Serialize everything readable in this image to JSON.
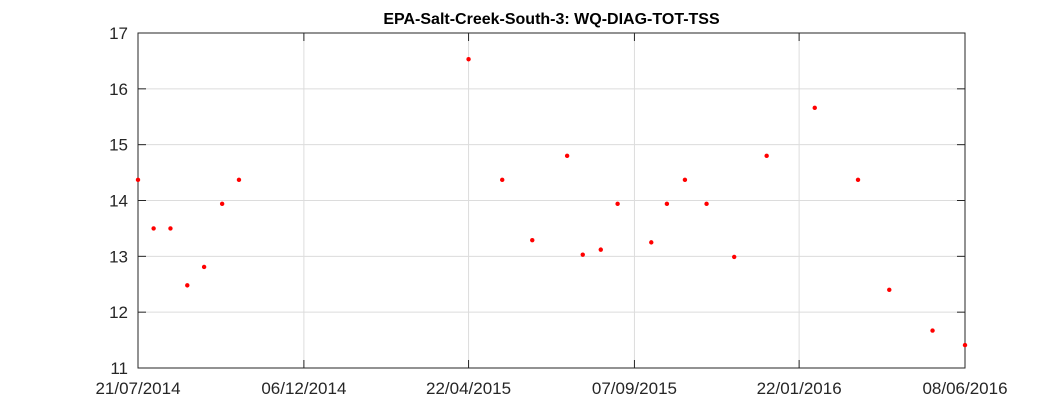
{
  "chart_data": {
    "type": "scatter",
    "title": "EPA-Salt-Creek-South-3: WQ-DIAG-TOT-TSS",
    "xlabel": "",
    "ylabel": "",
    "x_axis_type": "date",
    "xlim": [
      "2014-07-21",
      "2016-06-08"
    ],
    "ylim": [
      11,
      17
    ],
    "xticks": [
      "2014-07-21",
      "2014-12-06",
      "2015-04-22",
      "2015-09-07",
      "2016-01-22",
      "2016-06-08"
    ],
    "xtick_labels": [
      "21/07/2014",
      "06/12/2014",
      "22/04/2015",
      "07/09/2015",
      "22/01/2016",
      "08/06/2016"
    ],
    "yticks": [
      11,
      12,
      13,
      14,
      15,
      16,
      17
    ],
    "ytick_labels": [
      "11",
      "12",
      "13",
      "14",
      "15",
      "16",
      "17"
    ],
    "grid": true,
    "marker_color": "#ff0000",
    "points": [
      {
        "x": "2014-07-21",
        "y": 14.37
      },
      {
        "x": "2014-08-03",
        "y": 13.5
      },
      {
        "x": "2014-08-17",
        "y": 13.5
      },
      {
        "x": "2014-08-31",
        "y": 12.48
      },
      {
        "x": "2014-09-14",
        "y": 12.81
      },
      {
        "x": "2014-09-29",
        "y": 13.94
      },
      {
        "x": "2014-10-13",
        "y": 14.37
      },
      {
        "x": "2015-04-22",
        "y": 16.53
      },
      {
        "x": "2015-05-20",
        "y": 14.37
      },
      {
        "x": "2015-06-14",
        "y": 13.29
      },
      {
        "x": "2015-07-13",
        "y": 14.8
      },
      {
        "x": "2015-07-26",
        "y": 13.03
      },
      {
        "x": "2015-08-10",
        "y": 13.12
      },
      {
        "x": "2015-08-24",
        "y": 13.94
      },
      {
        "x": "2015-09-21",
        "y": 13.25
      },
      {
        "x": "2015-10-04",
        "y": 13.94
      },
      {
        "x": "2015-10-19",
        "y": 14.37
      },
      {
        "x": "2015-11-06",
        "y": 13.94
      },
      {
        "x": "2015-11-29",
        "y": 12.99
      },
      {
        "x": "2015-12-26",
        "y": 14.8
      },
      {
        "x": "2016-02-04",
        "y": 15.66
      },
      {
        "x": "2016-03-11",
        "y": 14.37
      },
      {
        "x": "2016-04-06",
        "y": 12.4
      },
      {
        "x": "2016-05-12",
        "y": 11.67
      },
      {
        "x": "2016-06-08",
        "y": 11.41
      }
    ]
  }
}
